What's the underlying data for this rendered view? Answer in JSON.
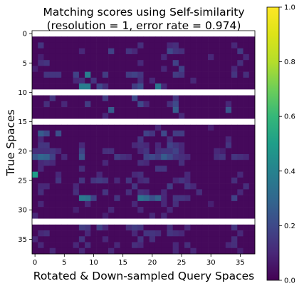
{
  "chart_data": {
    "type": "heatmap",
    "title_line1": "Matching scores using Self-similarity",
    "title_line2": "(resolution = 1, error rate = 0.974)",
    "xlabel": "Rotated & Down-sampled Query Spaces",
    "ylabel": "True Spaces",
    "n_rows": 38,
    "n_cols": 38,
    "xlim": [
      -0.5,
      37.5
    ],
    "ylim": [
      37.5,
      -0.5
    ],
    "x_ticks": [
      0,
      5,
      10,
      15,
      20,
      25,
      30,
      35
    ],
    "y_ticks": [
      0,
      5,
      10,
      15,
      20,
      25,
      30,
      35
    ],
    "vmin": 0.0,
    "vmax": 1.0,
    "colorbar_ticks": [
      "0.0",
      "0.2",
      "0.4",
      "0.6",
      "0.8",
      "1.0"
    ],
    "colormap": "viridis",
    "background_value": 0.02,
    "blank_rows": [
      0,
      10,
      15,
      32
    ],
    "cells": [
      [
        2,
        1,
        0.14
      ],
      [
        2,
        18,
        0.12
      ],
      [
        2,
        23,
        0.1
      ],
      [
        2,
        24,
        0.12
      ],
      [
        2,
        34,
        0.1
      ],
      [
        3,
        8,
        0.1
      ],
      [
        3,
        13,
        0.18
      ],
      [
        3,
        16,
        0.14
      ],
      [
        3,
        17,
        0.1
      ],
      [
        3,
        23,
        0.2
      ],
      [
        3,
        24,
        0.14
      ],
      [
        3,
        25,
        0.12
      ],
      [
        3,
        35,
        0.16
      ],
      [
        4,
        1,
        0.08
      ],
      [
        4,
        22,
        0.1
      ],
      [
        4,
        30,
        0.1
      ],
      [
        4,
        36,
        0.1
      ],
      [
        5,
        1,
        0.12
      ],
      [
        5,
        2,
        0.14
      ],
      [
        5,
        18,
        0.1
      ],
      [
        5,
        24,
        0.18
      ],
      [
        5,
        35,
        0.12
      ],
      [
        6,
        0,
        0.08
      ],
      [
        6,
        22,
        0.1
      ],
      [
        6,
        25,
        0.18
      ],
      [
        6,
        34,
        0.1
      ],
      [
        7,
        2,
        0.14
      ],
      [
        7,
        3,
        0.14
      ],
      [
        7,
        4,
        0.14
      ],
      [
        7,
        7,
        0.18
      ],
      [
        7,
        9,
        0.38
      ],
      [
        7,
        12,
        0.16
      ],
      [
        7,
        16,
        0.16
      ],
      [
        7,
        17,
        0.18
      ],
      [
        7,
        18,
        0.14
      ],
      [
        7,
        24,
        0.16
      ],
      [
        7,
        25,
        0.14
      ],
      [
        7,
        34,
        0.14
      ],
      [
        7,
        36,
        0.12
      ],
      [
        8,
        7,
        0.1
      ],
      [
        8,
        8,
        0.12
      ],
      [
        8,
        10,
        0.14
      ],
      [
        8,
        18,
        0.12
      ],
      [
        8,
        20,
        0.1
      ],
      [
        8,
        27,
        0.1
      ],
      [
        9,
        8,
        0.38
      ],
      [
        9,
        9,
        0.38
      ],
      [
        9,
        11,
        0.2
      ],
      [
        9,
        12,
        0.12
      ],
      [
        9,
        17,
        0.16
      ],
      [
        9,
        18,
        0.22
      ],
      [
        9,
        21,
        0.36
      ],
      [
        9,
        22,
        0.1
      ],
      [
        11,
        3,
        0.14
      ],
      [
        11,
        12,
        0.16
      ],
      [
        11,
        17,
        0.2
      ],
      [
        11,
        24,
        0.14
      ],
      [
        12,
        2,
        0.12
      ],
      [
        12,
        5,
        0.1
      ],
      [
        12,
        9,
        0.16
      ],
      [
        12,
        18,
        0.2
      ],
      [
        12,
        19,
        0.1
      ],
      [
        12,
        23,
        0.12
      ],
      [
        12,
        24,
        0.2
      ],
      [
        12,
        33,
        0.1
      ],
      [
        13,
        13,
        0.26
      ],
      [
        13,
        24,
        0.26
      ],
      [
        13,
        33,
        0.24
      ],
      [
        14,
        12,
        0.1
      ],
      [
        14,
        25,
        0.1
      ],
      [
        16,
        21,
        0.1
      ],
      [
        16,
        30,
        0.08
      ],
      [
        17,
        1,
        0.26
      ],
      [
        17,
        2,
        0.2
      ],
      [
        17,
        4,
        0.22
      ],
      [
        17,
        19,
        0.18
      ],
      [
        17,
        20,
        0.14
      ],
      [
        17,
        22,
        0.2
      ],
      [
        17,
        24,
        0.16
      ],
      [
        17,
        25,
        0.16
      ],
      [
        18,
        1,
        0.1
      ],
      [
        18,
        18,
        0.14
      ],
      [
        18,
        23,
        0.12
      ],
      [
        18,
        33,
        0.1
      ],
      [
        19,
        1,
        0.14
      ],
      [
        19,
        2,
        0.14
      ],
      [
        19,
        8,
        0.1
      ],
      [
        19,
        17,
        0.1
      ],
      [
        19,
        18,
        0.12
      ],
      [
        19,
        19,
        0.1
      ],
      [
        19,
        21,
        0.1
      ],
      [
        19,
        23,
        0.18
      ],
      [
        19,
        24,
        0.14
      ],
      [
        19,
        25,
        0.1
      ],
      [
        19,
        33,
        0.14
      ],
      [
        20,
        0,
        0.12
      ],
      [
        20,
        1,
        0.12
      ],
      [
        20,
        2,
        0.12
      ],
      [
        20,
        3,
        0.14
      ],
      [
        20,
        4,
        0.1
      ],
      [
        20,
        8,
        0.18
      ],
      [
        20,
        12,
        0.12
      ],
      [
        20,
        13,
        0.12
      ],
      [
        20,
        18,
        0.1
      ],
      [
        20,
        19,
        0.14
      ],
      [
        20,
        21,
        0.12
      ],
      [
        20,
        22,
        0.14
      ],
      [
        20,
        23,
        0.14
      ],
      [
        20,
        24,
        0.18
      ],
      [
        20,
        25,
        0.1
      ],
      [
        20,
        31,
        0.1
      ],
      [
        20,
        32,
        0.08
      ],
      [
        21,
        0,
        0.24
      ],
      [
        21,
        1,
        0.3
      ],
      [
        21,
        2,
        0.28
      ],
      [
        21,
        3,
        0.18
      ],
      [
        21,
        5,
        0.1
      ],
      [
        21,
        8,
        0.24
      ],
      [
        21,
        14,
        0.16
      ],
      [
        21,
        15,
        0.12
      ],
      [
        21,
        16,
        0.1
      ],
      [
        21,
        19,
        0.18
      ],
      [
        21,
        20,
        0.2
      ],
      [
        21,
        21,
        0.16
      ],
      [
        21,
        22,
        0.26
      ],
      [
        21,
        23,
        0.2
      ],
      [
        21,
        24,
        0.14
      ],
      [
        21,
        25,
        0.12
      ],
      [
        21,
        26,
        0.1
      ],
      [
        21,
        31,
        0.12
      ],
      [
        21,
        32,
        0.14
      ],
      [
        21,
        34,
        0.14
      ],
      [
        21,
        35,
        0.12
      ],
      [
        21,
        36,
        0.1
      ],
      [
        22,
        1,
        0.1
      ],
      [
        22,
        2,
        0.12
      ],
      [
        22,
        3,
        0.1
      ],
      [
        22,
        12,
        0.1
      ],
      [
        22,
        18,
        0.12
      ],
      [
        22,
        19,
        0.1
      ],
      [
        22,
        25,
        0.12
      ],
      [
        23,
        1,
        0.1
      ],
      [
        23,
        8,
        0.12
      ],
      [
        23,
        21,
        0.14
      ],
      [
        23,
        22,
        0.14
      ],
      [
        24,
        0,
        0.5
      ],
      [
        24,
        4,
        0.1
      ],
      [
        24,
        11,
        0.1
      ],
      [
        24,
        17,
        0.1
      ],
      [
        24,
        18,
        0.12
      ],
      [
        24,
        26,
        0.1
      ],
      [
        24,
        35,
        0.1
      ],
      [
        25,
        4,
        0.14
      ],
      [
        25,
        8,
        0.14
      ],
      [
        25,
        10,
        0.14
      ],
      [
        25,
        11,
        0.16
      ],
      [
        25,
        12,
        0.14
      ],
      [
        25,
        14,
        0.1
      ],
      [
        25,
        16,
        0.14
      ],
      [
        25,
        18,
        0.1
      ],
      [
        25,
        19,
        0.12
      ],
      [
        25,
        24,
        0.1
      ],
      [
        25,
        25,
        0.14
      ],
      [
        25,
        26,
        0.1
      ],
      [
        25,
        34,
        0.12
      ],
      [
        26,
        1,
        0.1
      ],
      [
        26,
        2,
        0.1
      ],
      [
        26,
        7,
        0.1
      ],
      [
        26,
        17,
        0.14
      ],
      [
        26,
        23,
        0.16
      ],
      [
        26,
        26,
        0.14
      ],
      [
        26,
        27,
        0.1
      ],
      [
        26,
        36,
        0.12
      ],
      [
        27,
        1,
        0.12
      ],
      [
        27,
        7,
        0.12
      ],
      [
        27,
        12,
        0.14
      ],
      [
        27,
        16,
        0.12
      ],
      [
        27,
        18,
        0.12
      ],
      [
        27,
        19,
        0.1
      ],
      [
        27,
        22,
        0.1
      ],
      [
        27,
        28,
        0.12
      ],
      [
        27,
        35,
        0.1
      ],
      [
        28,
        8,
        0.36
      ],
      [
        28,
        9,
        0.34
      ],
      [
        28,
        10,
        0.18
      ],
      [
        28,
        14,
        0.14
      ],
      [
        28,
        18,
        0.34
      ],
      [
        28,
        19,
        0.3
      ],
      [
        28,
        20,
        0.22
      ],
      [
        28,
        21,
        0.28
      ],
      [
        28,
        22,
        0.1
      ],
      [
        28,
        24,
        0.14
      ],
      [
        28,
        25,
        0.14
      ],
      [
        28,
        26,
        0.12
      ],
      [
        28,
        34,
        0.18
      ],
      [
        29,
        1,
        0.1
      ],
      [
        29,
        9,
        0.1
      ],
      [
        29,
        17,
        0.1
      ],
      [
        29,
        22,
        0.1
      ],
      [
        29,
        24,
        0.12
      ],
      [
        29,
        30,
        0.08
      ],
      [
        30,
        7,
        0.08
      ],
      [
        30,
        13,
        0.1
      ],
      [
        30,
        18,
        0.1
      ],
      [
        30,
        23,
        0.1
      ],
      [
        31,
        0,
        0.1
      ],
      [
        31,
        12,
        0.08
      ],
      [
        31,
        20,
        0.1
      ],
      [
        31,
        22,
        0.1
      ],
      [
        33,
        8,
        0.16
      ],
      [
        33,
        9,
        0.14
      ],
      [
        33,
        11,
        0.18
      ],
      [
        33,
        12,
        0.1
      ],
      [
        33,
        16,
        0.12
      ],
      [
        33,
        17,
        0.16
      ],
      [
        33,
        18,
        0.14
      ],
      [
        33,
        23,
        0.12
      ],
      [
        33,
        26,
        0.1
      ],
      [
        33,
        34,
        0.14
      ],
      [
        34,
        1,
        0.1
      ],
      [
        34,
        2,
        0.12
      ],
      [
        34,
        9,
        0.1
      ],
      [
        34,
        17,
        0.1
      ],
      [
        34,
        19,
        0.14
      ],
      [
        34,
        20,
        0.14
      ],
      [
        34,
        21,
        0.12
      ],
      [
        34,
        23,
        0.14
      ],
      [
        34,
        24,
        0.12
      ],
      [
        34,
        25,
        0.1
      ],
      [
        34,
        35,
        0.1
      ],
      [
        35,
        0,
        0.1
      ],
      [
        35,
        8,
        0.14
      ],
      [
        35,
        12,
        0.1
      ],
      [
        35,
        18,
        0.14
      ],
      [
        35,
        20,
        0.12
      ],
      [
        35,
        34,
        0.12
      ],
      [
        36,
        1,
        0.1
      ],
      [
        36,
        7,
        0.1
      ],
      [
        36,
        9,
        0.12
      ],
      [
        36,
        14,
        0.1
      ],
      [
        36,
        17,
        0.12
      ],
      [
        36,
        18,
        0.1
      ],
      [
        36,
        24,
        0.1
      ],
      [
        36,
        26,
        0.12
      ],
      [
        36,
        33,
        0.1
      ],
      [
        36,
        34,
        0.12
      ],
      [
        37,
        3,
        0.1
      ],
      [
        37,
        8,
        0.1
      ],
      [
        37,
        13,
        0.1
      ],
      [
        37,
        24,
        0.1
      ],
      [
        37,
        27,
        0.1
      ],
      [
        37,
        35,
        0.08
      ]
    ]
  }
}
